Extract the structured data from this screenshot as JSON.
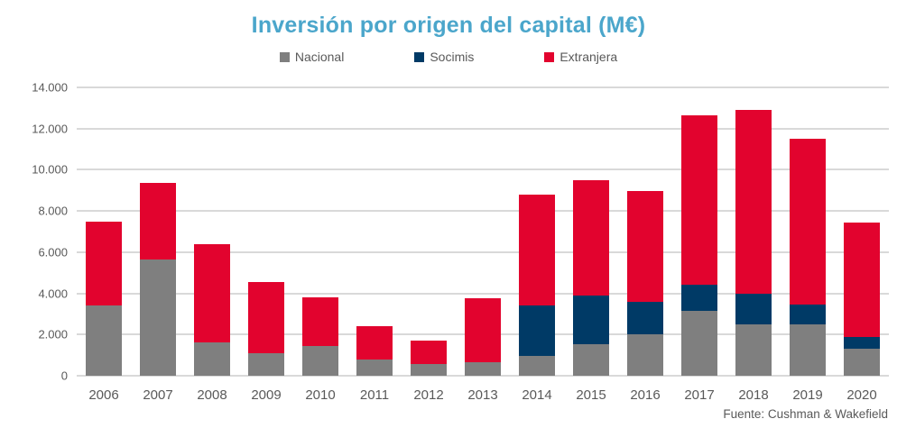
{
  "title": "Inversión por origen del capital (M€)",
  "source": "Fuente:  Cushman & Wakefield",
  "colors": {
    "title": "#4ba6cb",
    "nacional": "#7f7f7f",
    "socimis": "#003a66",
    "extranjera": "#e2032e",
    "axis_text": "#595959",
    "gridline": "#d9d9d9"
  },
  "chart_data": {
    "type": "bar",
    "stacked": true,
    "title": "Inversión por origen del capital (M€)",
    "xlabel": "",
    "ylabel": "",
    "ylim": [
      0,
      14000
    ],
    "ytick_interval": 2000,
    "ytick_labels_top_to_bottom": [
      "14.000",
      "12.000",
      "10.000",
      "8.000",
      "6.000",
      "4.000",
      "2.000",
      "0"
    ],
    "grid": true,
    "legend_position": "top",
    "categories": [
      "2006",
      "2007",
      "2008",
      "2009",
      "2010",
      "2011",
      "2012",
      "2013",
      "2014",
      "2015",
      "2016",
      "2017",
      "2018",
      "2019",
      "2020"
    ],
    "series": [
      {
        "name": "Nacional",
        "color": "#7f7f7f",
        "values": [
          3400,
          5650,
          1600,
          1100,
          1450,
          800,
          550,
          650,
          950,
          1550,
          2000,
          3150,
          2500,
          2500,
          1300
        ]
      },
      {
        "name": "Socimis",
        "color": "#003a66",
        "values": [
          0,
          0,
          0,
          0,
          0,
          0,
          0,
          0,
          2450,
          2350,
          1600,
          1250,
          1500,
          950,
          600
        ]
      },
      {
        "name": "Extranjera",
        "color": "#e2032e",
        "values": [
          4100,
          3700,
          4800,
          3450,
          2350,
          1600,
          1150,
          3100,
          5400,
          5600,
          5350,
          8250,
          8900,
          8050,
          5550
        ]
      }
    ],
    "stacked_totals": [
      7500,
      9350,
      6400,
      4550,
      3800,
      2400,
      1700,
      3750,
      8800,
      9500,
      8950,
      12650,
      12900,
      11500,
      7450
    ]
  }
}
